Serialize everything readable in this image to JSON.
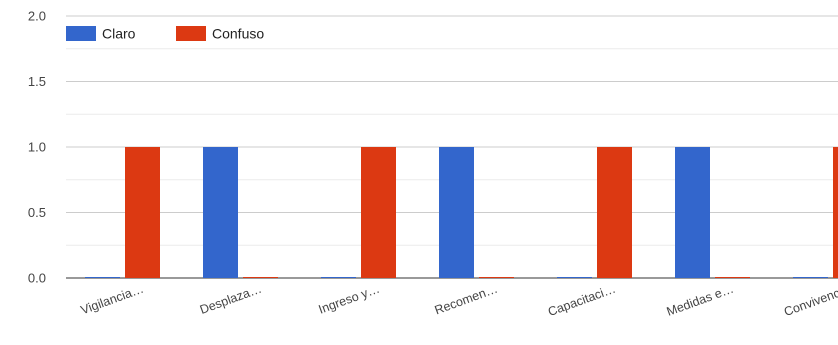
{
  "chart_data": {
    "type": "bar",
    "categories": [
      "Vigilancia…",
      "Desplaza…",
      "Ingreso y…",
      "Recomen…",
      "Capacitaci…",
      "Medidas e…",
      "Convivenc…"
    ],
    "series": [
      {
        "name": "Claro",
        "values": [
          0,
          1,
          0,
          1,
          0,
          1,
          0
        ],
        "color": "#3366cc"
      },
      {
        "name": "Confuso",
        "values": [
          1,
          0,
          1,
          0,
          1,
          0,
          1
        ],
        "color": "#dc3912"
      }
    ],
    "yticks": [
      "0.0",
      "0.5",
      "1.0",
      "1.5",
      "2.0"
    ],
    "ylim": [
      0,
      2
    ],
    "grid": true,
    "legend_position": "top-left"
  }
}
